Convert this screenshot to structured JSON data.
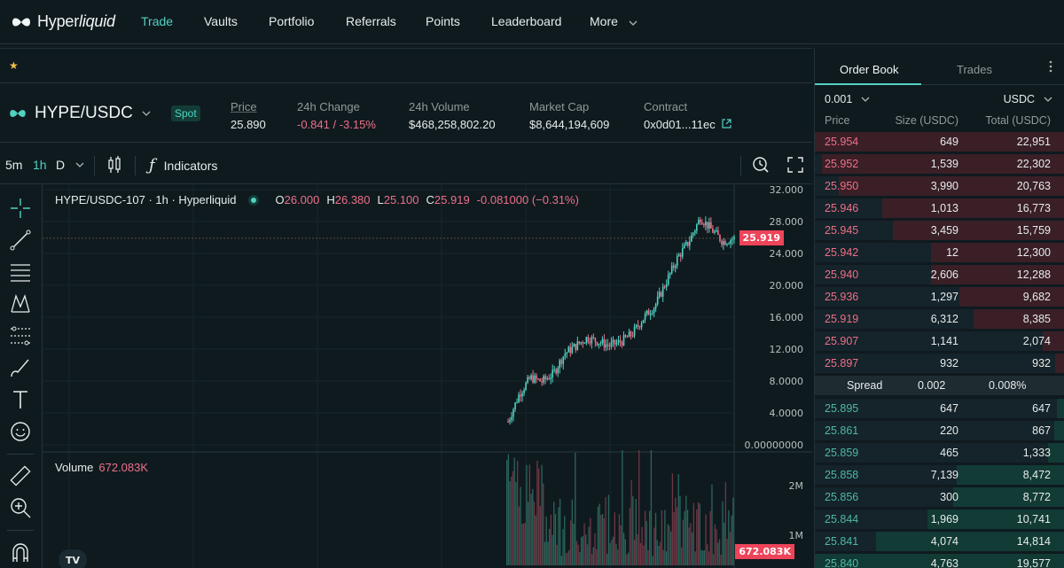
{
  "nav": {
    "brand": "Hyperliquid",
    "brand_plain": "Hyper",
    "brand_italic": "liquid",
    "items": [
      "Trade",
      "Vaults",
      "Portfolio",
      "Referrals",
      "Points",
      "Leaderboard",
      "More"
    ],
    "active": "Trade"
  },
  "favorites": {
    "icon": "star-icon"
  },
  "ticker": {
    "pair": "HYPE/USDC",
    "market_type": "Spot",
    "stats": [
      {
        "label": "Price",
        "value": "25.890"
      },
      {
        "label": "24h Change",
        "value": "-0.841 / -3.15%"
      },
      {
        "label": "24h Volume",
        "value": "$468,258,802.20"
      },
      {
        "label": "Market Cap",
        "value": "$8,644,194,609"
      },
      {
        "label": "Contract",
        "value": "0x0d01...11ec"
      }
    ]
  },
  "chart_toolbar": {
    "timeframes": [
      "5m",
      "1h",
      "D"
    ],
    "active_timeframe": "1h",
    "indicators_label": "Indicators"
  },
  "chart": {
    "legend_title": "HYPE/USDC-107 · 1h · Hyperliquid",
    "ohlc": {
      "o_label": "O",
      "o": "26.000",
      "h_label": "H",
      "h": "26.380",
      "l_label": "L",
      "l": "25.100",
      "c_label": "C",
      "c": "25.919",
      "change": "-0.081000 (−0.31%)"
    },
    "price_axis": [
      "32.000",
      "28.000",
      "24.000",
      "20.000",
      "16.000",
      "12.000",
      "8.0000",
      "4.0000",
      "0.00000000"
    ],
    "last_price_tag": "25.919",
    "volume_label": "Volume",
    "volume_value": "672.083K",
    "volume_axis": [
      "2M",
      "1M"
    ],
    "volume_tag": "672.083K",
    "colors": {
      "up": "#50d2c1",
      "down": "#ed7088",
      "tag": "#ed4459"
    }
  },
  "chart_data": {
    "type": "line",
    "title": "",
    "xlabel": "",
    "ylabel": "",
    "ylim": [
      0,
      32
    ],
    "x": [
      0,
      5,
      10,
      15,
      20,
      25,
      30,
      35,
      40,
      45,
      50,
      55,
      60,
      65,
      70,
      75,
      80,
      85,
      90,
      95,
      100
    ],
    "series": [
      {
        "values": [
          3.0,
          6.5,
          8.5,
          8.0,
          9.0,
          11.5,
          12.5,
          13.5,
          13.0,
          12.5,
          13.0,
          14.0,
          16.0,
          17.5,
          20.5,
          23.5,
          25.5,
          28.5,
          27.0,
          25.5,
          25.9
        ]
      }
    ]
  },
  "orderbook": {
    "tabs": [
      "Order Book",
      "Trades"
    ],
    "active_tab": "Order Book",
    "tick_size": "0.001",
    "currency": "USDC",
    "headers": [
      "Price",
      "Size (USDC)",
      "Total (USDC)"
    ],
    "asks": [
      {
        "price": "25.954",
        "size": "649",
        "total": "22,951",
        "depth": 1.0
      },
      {
        "price": "25.952",
        "size": "1,539",
        "total": "22,302",
        "depth": 0.97
      },
      {
        "price": "25.950",
        "size": "3,990",
        "total": "20,763",
        "depth": 0.905
      },
      {
        "price": "25.946",
        "size": "1,013",
        "total": "16,773",
        "depth": 0.73
      },
      {
        "price": "25.945",
        "size": "3,459",
        "total": "15,759",
        "depth": 0.687
      },
      {
        "price": "25.942",
        "size": "12",
        "total": "12,300",
        "depth": 0.536
      },
      {
        "price": "25.940",
        "size": "2,606",
        "total": "12,288",
        "depth": 0.535
      },
      {
        "price": "25.936",
        "size": "1,297",
        "total": "9,682",
        "depth": 0.422
      },
      {
        "price": "25.919",
        "size": "6,312",
        "total": "8,385",
        "depth": 0.365
      },
      {
        "price": "25.907",
        "size": "1,141",
        "total": "2,074",
        "depth": 0.09
      },
      {
        "price": "25.897",
        "size": "932",
        "total": "932",
        "depth": 0.04
      }
    ],
    "spread_label": "Spread",
    "spread_value": "0.002",
    "spread_pct": "0.008%",
    "bids": [
      {
        "price": "25.895",
        "size": "647",
        "total": "647",
        "depth": 0.033
      },
      {
        "price": "25.861",
        "size": "220",
        "total": "867",
        "depth": 0.044
      },
      {
        "price": "25.859",
        "size": "465",
        "total": "1,333",
        "depth": 0.068
      },
      {
        "price": "25.858",
        "size": "7,139",
        "total": "8,472",
        "depth": 0.432
      },
      {
        "price": "25.856",
        "size": "300",
        "total": "8,772",
        "depth": 0.448
      },
      {
        "price": "25.844",
        "size": "1,969",
        "total": "10,741",
        "depth": 0.548
      },
      {
        "price": "25.841",
        "size": "4,074",
        "total": "14,814",
        "depth": 0.756
      },
      {
        "price": "25.840",
        "size": "4,763",
        "total": "19,577",
        "depth": 1.0
      }
    ]
  }
}
